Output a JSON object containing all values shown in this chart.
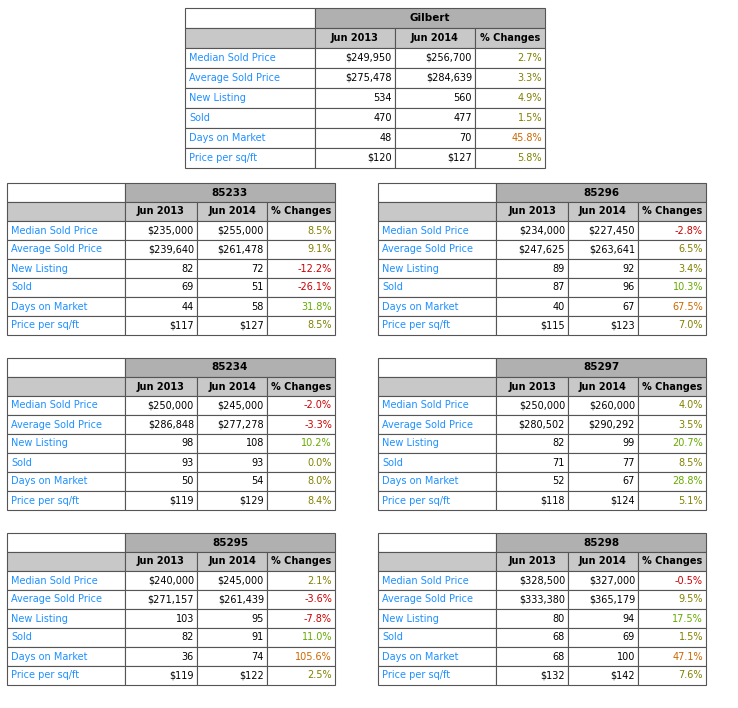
{
  "gilbert": {
    "title": "Gilbert",
    "rows": [
      [
        "Median Sold Price",
        "$249,950",
        "$256,700",
        "2.7%"
      ],
      [
        "Average Sold Price",
        "$275,478",
        "$284,639",
        "3.3%"
      ],
      [
        "New Listing",
        "534",
        "560",
        "4.9%"
      ],
      [
        "Sold",
        "470",
        "477",
        "1.5%"
      ],
      [
        "Days on Market",
        "48",
        "70",
        "45.8%"
      ],
      [
        "Price per sq/ft",
        "$120",
        "$127",
        "5.8%"
      ]
    ],
    "pct_colors": [
      "#808000",
      "#808000",
      "#808000",
      "#808000",
      "#cc6600",
      "#808000"
    ]
  },
  "zip85233": {
    "title": "85233",
    "rows": [
      [
        "Median Sold Price",
        "$235,000",
        "$255,000",
        "8.5%"
      ],
      [
        "Average Sold Price",
        "$239,640",
        "$261,478",
        "9.1%"
      ],
      [
        "New Listing",
        "82",
        "72",
        "-12.2%"
      ],
      [
        "Sold",
        "69",
        "51",
        "-26.1%"
      ],
      [
        "Days on Market",
        "44",
        "58",
        "31.8%"
      ],
      [
        "Price per sq/ft",
        "$117",
        "$127",
        "8.5%"
      ]
    ],
    "pct_colors": [
      "#808000",
      "#808000",
      "#cc0000",
      "#cc0000",
      "#66aa00",
      "#808000"
    ]
  },
  "zip85296": {
    "title": "85296",
    "rows": [
      [
        "Median Sold Price",
        "$234,000",
        "$227,450",
        "-2.8%"
      ],
      [
        "Average Sold Price",
        "$247,625",
        "$263,641",
        "6.5%"
      ],
      [
        "New Listing",
        "89",
        "92",
        "3.4%"
      ],
      [
        "Sold",
        "87",
        "96",
        "10.3%"
      ],
      [
        "Days on Market",
        "40",
        "67",
        "67.5%"
      ],
      [
        "Price per sq/ft",
        "$115",
        "$123",
        "7.0%"
      ]
    ],
    "pct_colors": [
      "#cc0000",
      "#808000",
      "#808000",
      "#66aa00",
      "#cc6600",
      "#808000"
    ]
  },
  "zip85234": {
    "title": "85234",
    "rows": [
      [
        "Median Sold Price",
        "$250,000",
        "$245,000",
        "-2.0%"
      ],
      [
        "Average Sold Price",
        "$286,848",
        "$277,278",
        "-3.3%"
      ],
      [
        "New Listing",
        "98",
        "108",
        "10.2%"
      ],
      [
        "Sold",
        "93",
        "93",
        "0.0%"
      ],
      [
        "Days on Market",
        "50",
        "54",
        "8.0%"
      ],
      [
        "Price per sq/ft",
        "$119",
        "$129",
        "8.4%"
      ]
    ],
    "pct_colors": [
      "#cc0000",
      "#cc0000",
      "#66aa00",
      "#808000",
      "#808000",
      "#808000"
    ]
  },
  "zip85297": {
    "title": "85297",
    "rows": [
      [
        "Median Sold Price",
        "$250,000",
        "$260,000",
        "4.0%"
      ],
      [
        "Average Sold Price",
        "$280,502",
        "$290,292",
        "3.5%"
      ],
      [
        "New Listing",
        "82",
        "99",
        "20.7%"
      ],
      [
        "Sold",
        "71",
        "77",
        "8.5%"
      ],
      [
        "Days on Market",
        "52",
        "67",
        "28.8%"
      ],
      [
        "Price per sq/ft",
        "$118",
        "$124",
        "5.1%"
      ]
    ],
    "pct_colors": [
      "#808000",
      "#808000",
      "#66aa00",
      "#808000",
      "#66aa00",
      "#808000"
    ]
  },
  "zip85295": {
    "title": "85295",
    "rows": [
      [
        "Median Sold Price",
        "$240,000",
        "$245,000",
        "2.1%"
      ],
      [
        "Average Sold Price",
        "$271,157",
        "$261,439",
        "-3.6%"
      ],
      [
        "New Listing",
        "103",
        "95",
        "-7.8%"
      ],
      [
        "Sold",
        "82",
        "91",
        "11.0%"
      ],
      [
        "Days on Market",
        "36",
        "74",
        "105.6%"
      ],
      [
        "Price per sq/ft",
        "$119",
        "$122",
        "2.5%"
      ]
    ],
    "pct_colors": [
      "#808000",
      "#cc0000",
      "#cc0000",
      "#66aa00",
      "#cc6600",
      "#808000"
    ]
  },
  "zip85298": {
    "title": "85298",
    "rows": [
      [
        "Median Sold Price",
        "$328,500",
        "$327,000",
        "-0.5%"
      ],
      [
        "Average Sold Price",
        "$333,380",
        "$365,179",
        "9.5%"
      ],
      [
        "New Listing",
        "80",
        "94",
        "17.5%"
      ],
      [
        "Sold",
        "68",
        "69",
        "1.5%"
      ],
      [
        "Days on Market",
        "68",
        "100",
        "47.1%"
      ],
      [
        "Price per sq/ft",
        "$132",
        "$142",
        "7.6%"
      ]
    ],
    "pct_colors": [
      "#cc0000",
      "#808000",
      "#66aa00",
      "#808000",
      "#cc6600",
      "#808000"
    ]
  },
  "label_color": "#1e90ff",
  "header_bg": "#c8c8c8",
  "title_bg": "#b0b0b0",
  "border_color": "#555555",
  "text_color": "#000000",
  "font_size": 7.0,
  "font_name": "DejaVu Sans"
}
